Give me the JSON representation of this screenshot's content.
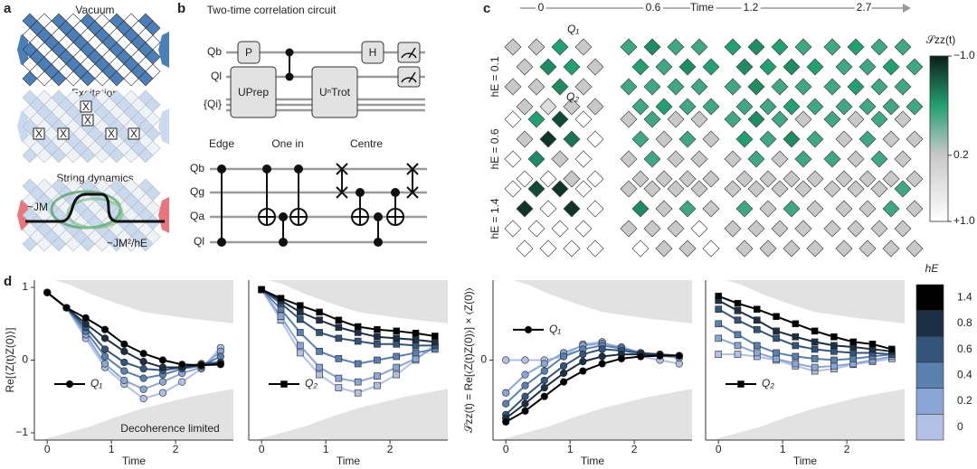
{
  "panels": {
    "a": {
      "label": "a",
      "titles": [
        "Vacuum",
        "Excitation",
        "String dynamics"
      ],
      "excitations": [
        "X",
        "X",
        "X",
        "X",
        "X",
        "X"
      ],
      "annotations": [
        "~JM",
        "~JM²/hE"
      ]
    },
    "b": {
      "label": "b",
      "title": "Two-time correlation circuit",
      "qubits": [
        "Qb",
        "Ql",
        "{Qi}"
      ],
      "gates": [
        "P",
        "UPrep",
        "UⁿTrot",
        "H"
      ],
      "variants": [
        "Edge",
        "One in",
        "Centre"
      ],
      "variant_qubits": [
        "Qb",
        "Qg",
        "Qa",
        "Ql"
      ]
    },
    "c": {
      "label": "c"
    },
    "d": {
      "label": "d"
    }
  },
  "chart_data": [
    {
      "type": "diamond-heatmap",
      "x_label": "Time",
      "columns": [
        "0",
        "0.6",
        "1.2",
        "2.7"
      ],
      "rows": [
        "hE = 0.1",
        "hE = 0.6",
        "hE = 1.4"
      ],
      "annotations": [
        "Q₁",
        "Q₂"
      ],
      "colorbar_title": "𝒮zz(t)",
      "colorbar_ticks": [
        {
          "value": -1,
          "label": "−1.0"
        },
        0.2,
        {
          "value": 1,
          "label": "+1.0"
        }
      ],
      "colors": [
        "#0a1f17",
        "#23a072",
        "#c9c9c9",
        "#ffffff"
      ],
      "values": [
        [
          [
            [
              0.2,
              0.2,
              -0.4,
              0.2
            ],
            [
              0.2,
              -0.5,
              -0.4,
              0.2
            ],
            [
              0.2,
              0.2,
              -0.5,
              0.2
            ],
            [
              0.2,
              0.5,
              0.2,
              0.2
            ]
          ],
          [
            [
              -0.3,
              -0.5,
              -0.3,
              -0.3
            ],
            [
              -0.4,
              -0.3,
              -0.5,
              -0.4
            ],
            [
              -0.3,
              -0.3,
              -0.3,
              -0.3
            ],
            [
              -0.3,
              -0.4,
              -0.3,
              -0.3
            ]
          ],
          [
            [
              -0.4,
              -0.5,
              -0.4,
              -0.3
            ],
            [
              -0.5,
              -0.4,
              -0.5,
              -0.4
            ],
            [
              -0.3,
              -0.5,
              -0.3,
              -0.3
            ],
            [
              -0.3,
              -0.3,
              -0.4,
              -0.3
            ]
          ],
          [
            [
              -0.3,
              -0.4,
              -0.3,
              -0.3
            ],
            [
              -0.3,
              -0.3,
              -0.4,
              -0.3
            ],
            [
              -0.3,
              -0.4,
              -0.3,
              -0.3
            ],
            [
              -0.3,
              -0.3,
              -0.3,
              -0.3
            ]
          ]
        ],
        [
          [
            [
              1,
              -0.4,
              -0.8,
              1
            ],
            [
              0.2,
              -0.9,
              -0.6,
              1
            ],
            [
              1,
              -0.5,
              0.2,
              1
            ],
            [
              1,
              1,
              0.2,
              1
            ]
          ],
          [
            [
              0.2,
              -0.3,
              0.2,
              0.2
            ],
            [
              -0.3,
              0.2,
              -0.3,
              0.2
            ],
            [
              0.2,
              -0.3,
              0.2,
              0.2
            ],
            [
              0.2,
              0.2,
              0.2,
              0.2
            ]
          ],
          [
            [
              -0.3,
              -0.5,
              -0.3,
              0.2
            ],
            [
              -0.4,
              -0.3,
              -0.5,
              -0.3
            ],
            [
              0.2,
              -0.3,
              0.2,
              -0.3
            ],
            [
              0.2,
              0.2,
              0.2,
              0.2
            ]
          ],
          [
            [
              -0.3,
              0.2,
              -0.3,
              0.2
            ],
            [
              0.2,
              -0.3,
              0.2,
              0.2
            ],
            [
              -0.3,
              0.2,
              -0.3,
              0.2
            ],
            [
              0.2,
              0.2,
              0.2,
              0.2
            ]
          ]
        ],
        [
          [
            [
              1,
              -0.8,
              -0.9,
              1
            ],
            [
              -0.9,
              1,
              -0.9,
              1
            ],
            [
              1,
              1,
              1,
              1
            ],
            [
              1,
              1,
              1,
              1
            ]
          ],
          [
            [
              0.2,
              0.2,
              0.2,
              0.2
            ],
            [
              -0.5,
              0.2,
              -0.3,
              0.2
            ],
            [
              0.2,
              0.2,
              0.2,
              1
            ],
            [
              1,
              0.2,
              0.2,
              1
            ]
          ],
          [
            [
              0.2,
              0.2,
              0.2,
              0.2
            ],
            [
              -0.3,
              0.2,
              -0.3,
              0.2
            ],
            [
              0.2,
              0.2,
              0.2,
              0.2
            ],
            [
              0.2,
              0.2,
              0.2,
              0.2
            ]
          ],
          [
            [
              0.2,
              0.2,
              0.2,
              -0.3
            ],
            [
              0.2,
              0.2,
              -0.3,
              0.2
            ],
            [
              0.2,
              0.2,
              0.2,
              0.2
            ],
            [
              0.2,
              0.2,
              0.2,
              0.2
            ]
          ]
        ]
      ]
    },
    {
      "type": "line",
      "x": [
        0,
        0.3,
        0.6,
        0.9,
        1.2,
        1.5,
        1.8,
        2.1,
        2.4,
        2.7
      ],
      "xlim": [
        -0.2,
        2.9
      ],
      "ylim": [
        -1.1,
        1.1
      ],
      "xticks": [
        0,
        1,
        2
      ],
      "yticks": [
        1,
        0,
        {
          "value": -1,
          "label": "−1"
        }
      ],
      "x_label": "Time",
      "y_label": "Re[⟨Z(t)Z(0)⟩]",
      "marker": "circle",
      "legend_label": "Q₁",
      "legend_loc": "lower left",
      "annotation": "Decoherence limited",
      "legend_title": "hE",
      "series": [
        {
          "name": "1.4",
          "color": "#000000",
          "values": [
            0.93,
            0.72,
            0.58,
            0.42,
            0.22,
            0.09,
            0.0,
            -0.06,
            -0.07,
            -0.06
          ]
        },
        {
          "name": "0.8",
          "color": "#1d2f45",
          "values": [
            0.93,
            0.72,
            0.5,
            0.3,
            0.12,
            -0.02,
            -0.1,
            -0.1,
            -0.07,
            -0.05
          ]
        },
        {
          "name": "0.6",
          "color": "#34557a",
          "values": [
            0.93,
            0.72,
            0.45,
            0.15,
            -0.03,
            -0.12,
            -0.14,
            -0.1,
            -0.05,
            -0.03
          ]
        },
        {
          "name": "0.4",
          "color": "#5a80b0",
          "values": [
            0.93,
            0.72,
            0.4,
            0.05,
            -0.15,
            -0.25,
            -0.2,
            -0.12,
            -0.08,
            0.05
          ]
        },
        {
          "name": "0.2",
          "color": "#8aa6d6",
          "values": [
            0.93,
            0.72,
            0.35,
            -0.05,
            -0.28,
            -0.4,
            -0.3,
            -0.18,
            -0.1,
            0.12
          ]
        },
        {
          "name": "0",
          "color": "#b3c0e6",
          "values": [
            0.93,
            0.72,
            0.3,
            -0.1,
            -0.33,
            -0.53,
            -0.45,
            -0.3,
            -0.12,
            0.17
          ]
        }
      ]
    },
    {
      "type": "line",
      "x": [
        0,
        0.3,
        0.6,
        0.9,
        1.2,
        1.5,
        1.8,
        2.1,
        2.4,
        2.7
      ],
      "xlim": [
        -0.2,
        2.9
      ],
      "ylim": [
        -1.1,
        1.1
      ],
      "xticks": [
        0,
        1,
        2
      ],
      "x_label": "Time",
      "marker": "square",
      "legend_label": "Q₂",
      "legend_loc": "lower left",
      "series": [
        {
          "name": "1.4",
          "color": "#000000",
          "values": [
            0.97,
            0.85,
            0.75,
            0.66,
            0.55,
            0.46,
            0.42,
            0.4,
            0.37,
            0.33
          ]
        },
        {
          "name": "0.8",
          "color": "#1d2f45",
          "values": [
            0.97,
            0.82,
            0.66,
            0.55,
            0.45,
            0.38,
            0.32,
            0.3,
            0.28,
            0.25
          ]
        },
        {
          "name": "0.6",
          "color": "#34557a",
          "values": [
            0.97,
            0.78,
            0.56,
            0.38,
            0.3,
            0.26,
            0.22,
            0.22,
            0.2,
            0.2
          ]
        },
        {
          "name": "0.4",
          "color": "#5a80b0",
          "values": [
            0.97,
            0.7,
            0.38,
            0.12,
            0.02,
            -0.05,
            0.0,
            0.05,
            0.1,
            0.15
          ]
        },
        {
          "name": "0.2",
          "color": "#8aa6d6",
          "values": [
            0.97,
            0.6,
            0.2,
            -0.1,
            -0.25,
            -0.3,
            -0.22,
            -0.1,
            0.02,
            0.18
          ]
        },
        {
          "name": "0",
          "color": "#b3c0e6",
          "values": [
            0.97,
            0.55,
            0.1,
            -0.2,
            -0.38,
            -0.45,
            -0.35,
            -0.2,
            0.0,
            0.22
          ]
        }
      ]
    },
    {
      "type": "line",
      "x": [
        0,
        0.3,
        0.6,
        0.9,
        1.2,
        1.5,
        1.8,
        2.1,
        2.4,
        2.7
      ],
      "xlim": [
        -0.2,
        2.9
      ],
      "ylim": [
        -1.1,
        1.1
      ],
      "xticks": [
        0,
        1,
        2
      ],
      "yticks": [
        0
      ],
      "x_label": "Time",
      "y_label": "𝒮zz(t) = Re[⟨Z(t)Z(0)⟩] × ⟨Z(0)⟩",
      "marker": "circle",
      "legend_label": "Q₁",
      "legend_loc": "upper left",
      "series": [
        {
          "name": "1.4",
          "color": "#000000",
          "values": [
            -0.85,
            -0.7,
            -0.5,
            -0.3,
            -0.15,
            -0.05,
            0.02,
            0.05,
            0.06,
            0.06
          ]
        },
        {
          "name": "0.8",
          "color": "#1d2f45",
          "values": [
            -0.8,
            -0.6,
            -0.38,
            -0.18,
            -0.02,
            0.05,
            0.08,
            0.08,
            0.07,
            0.06
          ]
        },
        {
          "name": "0.6",
          "color": "#34557a",
          "values": [
            -0.75,
            -0.5,
            -0.28,
            -0.08,
            0.08,
            0.15,
            0.13,
            0.1,
            0.08,
            0.06
          ]
        },
        {
          "name": "0.4",
          "color": "#5a80b0",
          "values": [
            -0.6,
            -0.35,
            -0.15,
            0.05,
            0.15,
            0.2,
            0.16,
            0.1,
            0.08,
            0.06
          ]
        },
        {
          "name": "0.2",
          "color": "#8aa6d6",
          "values": [
            -0.45,
            -0.2,
            -0.05,
            0.1,
            0.2,
            0.23,
            0.18,
            0.1,
            0.06,
            0.03
          ]
        },
        {
          "name": "0",
          "color": "#b3c0e6",
          "values": [
            0,
            0,
            0,
            0.05,
            0.22,
            0.25,
            0.15,
            0.05,
            0.0,
            -0.05
          ]
        }
      ]
    },
    {
      "type": "line",
      "x": [
        0,
        0.3,
        0.6,
        0.9,
        1.2,
        1.5,
        1.8,
        2.1,
        2.4,
        2.7
      ],
      "xlim": [
        -0.2,
        2.9
      ],
      "ylim": [
        -1.1,
        1.1
      ],
      "xticks": [
        0,
        1,
        2
      ],
      "x_label": "Time",
      "marker": "square",
      "legend_label": "Q₂",
      "legend_loc": "lower left",
      "series": [
        {
          "name": "1.4",
          "color": "#000000",
          "values": [
            0.88,
            0.78,
            0.7,
            0.6,
            0.5,
            0.4,
            0.32,
            0.25,
            0.22,
            0.15
          ]
        },
        {
          "name": "0.8",
          "color": "#1d2f45",
          "values": [
            0.82,
            0.68,
            0.55,
            0.4,
            0.32,
            0.25,
            0.2,
            0.18,
            0.15,
            0.12
          ]
        },
        {
          "name": "0.6",
          "color": "#34557a",
          "values": [
            0.7,
            0.55,
            0.42,
            0.3,
            0.2,
            0.15,
            0.12,
            0.1,
            0.1,
            0.08
          ]
        },
        {
          "name": "0.4",
          "color": "#5a80b0",
          "values": [
            0.5,
            0.35,
            0.2,
            0.1,
            0.05,
            0.02,
            0.0,
            0.02,
            0.05,
            0.08
          ]
        },
        {
          "name": "0.2",
          "color": "#8aa6d6",
          "values": [
            0.3,
            0.2,
            0.1,
            0.02,
            -0.05,
            -0.1,
            -0.08,
            -0.05,
            0.0,
            0.05
          ]
        },
        {
          "name": "0",
          "color": "#b3c0e6",
          "values": [
            0.08,
            0.08,
            0.05,
            0.0,
            -0.08,
            -0.15,
            -0.12,
            -0.06,
            -0.02,
            0.02
          ]
        }
      ]
    }
  ]
}
